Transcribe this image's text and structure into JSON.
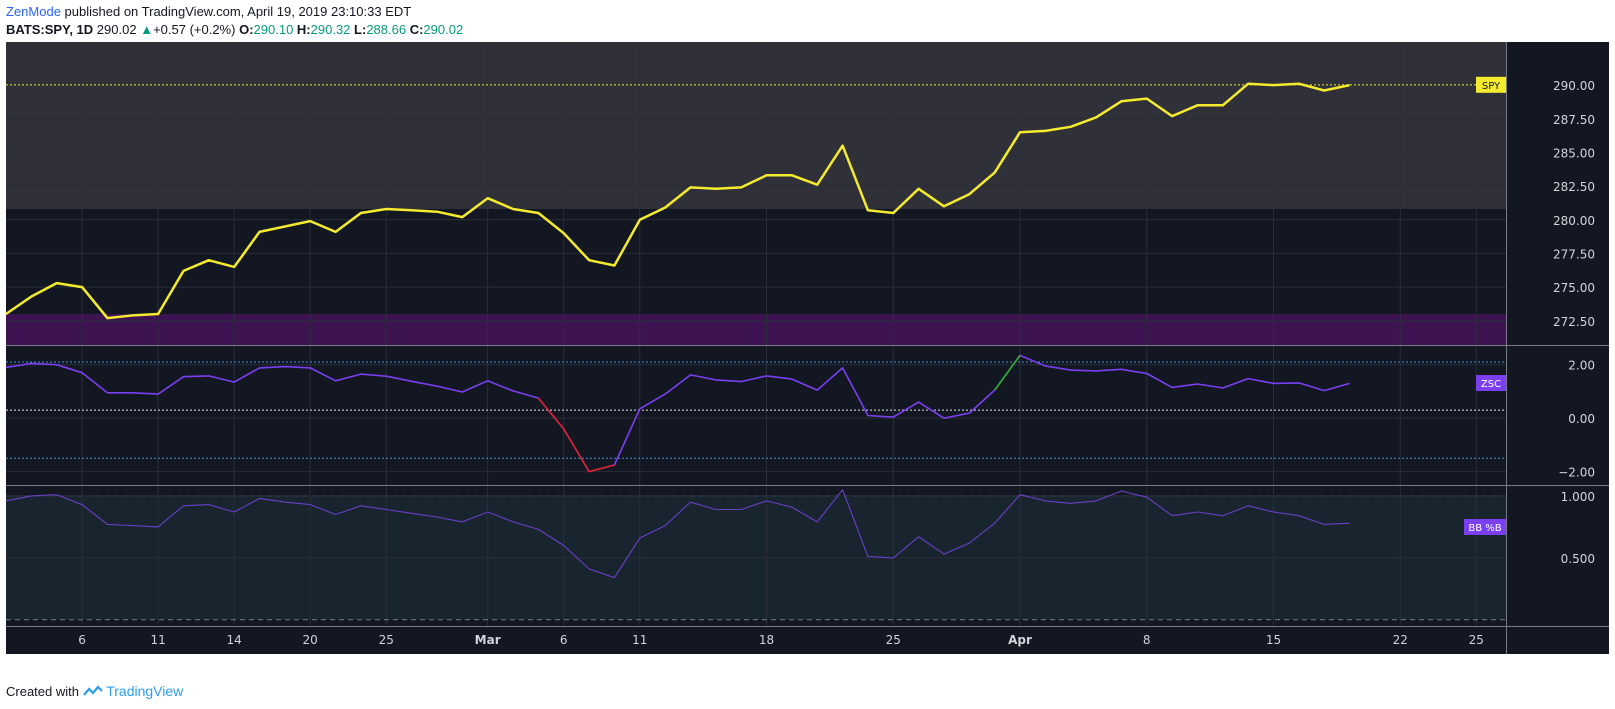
{
  "header": {
    "author": "ZenMode",
    "published": "published on TradingView.com, April 19, 2019 23:10:33 EDT",
    "symbol": "BATS:SPY, 1D",
    "price": "290.02",
    "change": "+0.57 (+0.2%)",
    "o_label": "O:",
    "o": "290.10",
    "h_label": "H:",
    "h": "290.32",
    "l_label": "L:",
    "l": "288.66",
    "c_label": "C:",
    "c": "290.02"
  },
  "footer": {
    "created": "Created with",
    "brand": "TradingView"
  },
  "colors": {
    "price_line": "#f5eb2e",
    "zsc_line": "#7b3ff2",
    "zsc_down": "#e0202a",
    "zsc_up": "#2bb02b",
    "bb_line": "#6a3fc8",
    "chart_bg": "#131722",
    "zone_upper": "#2f3038",
    "zone_lower": "#3d1352",
    "bb_band": "#18252f"
  },
  "chart_data": [
    {
      "type": "line",
      "name": "SPY",
      "label": "SPY",
      "last_value": 290.02,
      "ylim": [
        270.7,
        293.2
      ],
      "yticks": [
        "290.00",
        "287.50",
        "285.00",
        "282.50",
        "280.00",
        "277.50",
        "275.00",
        "272.50"
      ],
      "ytick_values": [
        290,
        287.5,
        285,
        282.5,
        280,
        277.5,
        275,
        272.5
      ],
      "zones": [
        {
          "from": 280.8,
          "to": 293.2,
          "color": "#2f3038"
        },
        {
          "from": 270.7,
          "to": 273.0,
          "color": "#3d1352"
        }
      ],
      "x": [
        0,
        1,
        2,
        3,
        4,
        5,
        6,
        7,
        8,
        9,
        10,
        11,
        12,
        13,
        14,
        15,
        16,
        17,
        18,
        19,
        20,
        21,
        22,
        23,
        24,
        25,
        26,
        27,
        28,
        29,
        30,
        31,
        32,
        33,
        34,
        35,
        36,
        37,
        38,
        39,
        40,
        41,
        42,
        43,
        44,
        45,
        46,
        47,
        48,
        49,
        50,
        51,
        52,
        53
      ],
      "values": [
        273.0,
        274.3,
        275.3,
        275.0,
        272.7,
        272.9,
        273.0,
        276.2,
        277.0,
        276.5,
        279.1,
        279.5,
        279.9,
        279.1,
        280.5,
        280.8,
        280.7,
        280.6,
        280.2,
        281.6,
        280.8,
        280.5,
        279.0,
        277.0,
        276.6,
        280.0,
        280.9,
        282.4,
        282.3,
        282.4,
        283.3,
        283.3,
        282.6,
        285.5,
        280.7,
        280.5,
        282.3,
        281.0,
        281.9,
        283.5,
        286.5,
        286.6,
        286.9,
        287.6,
        288.8,
        289.0,
        287.7,
        288.5,
        288.5,
        290.1,
        290.0,
        290.1,
        289.6,
        290.0
      ]
    },
    {
      "type": "line",
      "name": "ZSC",
      "label": "ZSC",
      "ylim": [
        -2.5,
        2.7
      ],
      "yticks": [
        "2.00",
        "0.00",
        "−2.00"
      ],
      "ytick_values": [
        2,
        0,
        -2
      ],
      "levels": [
        2.1,
        0.3,
        -1.5
      ],
      "x": [
        0,
        1,
        2,
        3,
        4,
        5,
        6,
        7,
        8,
        9,
        10,
        11,
        12,
        13,
        14,
        15,
        16,
        17,
        18,
        19,
        20,
        21,
        22,
        23,
        24,
        25,
        26,
        27,
        28,
        29,
        30,
        31,
        32,
        33,
        34,
        35,
        36,
        37,
        38,
        39,
        40,
        41,
        42,
        43,
        44,
        45,
        46,
        47,
        48,
        49,
        50,
        51,
        52,
        53
      ],
      "values": [
        1.9,
        2.05,
        2.0,
        1.7,
        0.95,
        0.95,
        0.9,
        1.55,
        1.58,
        1.35,
        1.88,
        1.93,
        1.88,
        1.4,
        1.65,
        1.57,
        1.38,
        1.2,
        0.98,
        1.4,
        1.02,
        0.75,
        -0.4,
        -2.0,
        -1.75,
        0.35,
        0.9,
        1.62,
        1.43,
        1.37,
        1.58,
        1.46,
        1.05,
        1.88,
        0.1,
        0.04,
        0.6,
        0.0,
        0.19,
        1.05,
        2.35,
        1.95,
        1.8,
        1.77,
        1.83,
        1.67,
        1.15,
        1.28,
        1.13,
        1.48,
        1.3,
        1.32,
        1.03,
        1.3
      ],
      "down_segment": [
        21,
        24
      ],
      "up_segment": [
        39,
        40
      ]
    },
    {
      "type": "line",
      "name": "BB %B",
      "label": "BB %B",
      "ylim": [
        -0.05,
        1.08
      ],
      "yticks": [
        "1.000",
        "0.500"
      ],
      "ytick_values": [
        1,
        0.5
      ],
      "band": [
        0,
        1
      ],
      "x": [
        0,
        1,
        2,
        3,
        4,
        5,
        6,
        7,
        8,
        9,
        10,
        11,
        12,
        13,
        14,
        15,
        16,
        17,
        18,
        19,
        20,
        21,
        22,
        23,
        24,
        25,
        26,
        27,
        28,
        29,
        30,
        31,
        32,
        33,
        34,
        35,
        36,
        37,
        38,
        39,
        40,
        41,
        42,
        43,
        44,
        45,
        46,
        47,
        48,
        49,
        50,
        51,
        52,
        53
      ],
      "values": [
        0.96,
        1.0,
        1.01,
        0.93,
        0.77,
        0.76,
        0.75,
        0.92,
        0.93,
        0.87,
        0.98,
        0.95,
        0.93,
        0.85,
        0.92,
        0.89,
        0.86,
        0.83,
        0.79,
        0.87,
        0.79,
        0.73,
        0.6,
        0.41,
        0.34,
        0.66,
        0.76,
        0.95,
        0.89,
        0.89,
        0.96,
        0.91,
        0.79,
        1.05,
        0.51,
        0.5,
        0.67,
        0.53,
        0.62,
        0.78,
        1.01,
        0.96,
        0.94,
        0.96,
        1.04,
        0.99,
        0.84,
        0.87,
        0.84,
        0.92,
        0.87,
        0.84,
        0.77,
        0.78
      ]
    }
  ],
  "x_axis": {
    "ticks": [
      {
        "label": "6",
        "i": 3
      },
      {
        "label": "11",
        "i": 6
      },
      {
        "label": "14",
        "i": 9
      },
      {
        "label": "20",
        "i": 12
      },
      {
        "label": "25",
        "i": 15
      },
      {
        "label": "Mar",
        "i": 19
      },
      {
        "label": "6",
        "i": 22
      },
      {
        "label": "11",
        "i": 25
      },
      {
        "label": "18",
        "i": 30
      },
      {
        "label": "25",
        "i": 35
      },
      {
        "label": "Apr",
        "i": 40
      },
      {
        "label": "8",
        "i": 45
      },
      {
        "label": "15",
        "i": 50
      },
      {
        "label": "22",
        "i": 55
      },
      {
        "label": "25",
        "i": 58
      }
    ]
  }
}
